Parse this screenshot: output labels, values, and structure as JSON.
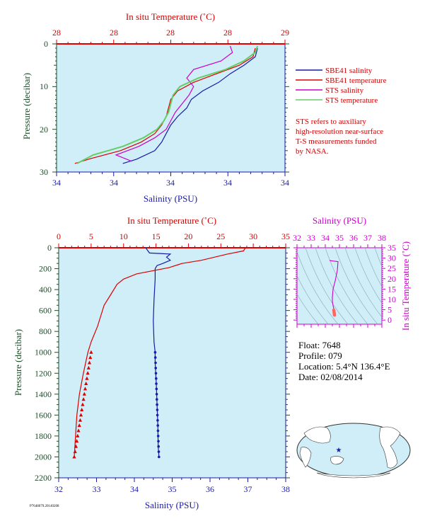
{
  "top_chart": {
    "top_axis_title": "In situ Temperature (˚C)",
    "top_ticks": [
      "28",
      "28",
      "28",
      "28",
      "29"
    ],
    "bottom_axis_title": "Salinity (PSU)",
    "bottom_ticks": [
      "34",
      "34",
      "34",
      "34",
      "34"
    ],
    "left_axis_title": "Pressure (decibar)",
    "left_ticks": [
      "0",
      "10",
      "20",
      "30"
    ],
    "legend": [
      {
        "label": "SBE41 salinity",
        "color": "#1a1aa8"
      },
      {
        "label": "SBE41 temperature",
        "color": "#dd0000"
      },
      {
        "label": "STS salinity",
        "color": "#cc00cc"
      },
      {
        "label": "STS temperature",
        "color": "#66cc66"
      }
    ],
    "note_lines": [
      "STS refers to auxiliary",
      "high-resolution near-surface",
      "T-S measurements funded",
      "by NASA."
    ]
  },
  "main_chart": {
    "top_axis_title": "In situ Temperature (˚C)",
    "top_ticks": [
      "0",
      "5",
      "10",
      "15",
      "20",
      "25",
      "30",
      "35"
    ],
    "bottom_axis_title": "Salinity (PSU)",
    "bottom_ticks": [
      "32",
      "33",
      "34",
      "35",
      "36",
      "37",
      "38"
    ],
    "left_axis_title": "Pressure (decibar)",
    "left_ticks": [
      "0",
      "200",
      "400",
      "600",
      "800",
      "1000",
      "1200",
      "1400",
      "1600",
      "1800",
      "2000",
      "2200"
    ]
  },
  "ts_chart": {
    "top_axis_title": "Salinity (PSU)",
    "top_ticks": [
      "32",
      "33",
      "34",
      "35",
      "36",
      "37",
      "38"
    ],
    "right_axis_title": "In situ Temperature (˚C)",
    "right_ticks": [
      "0",
      "5",
      "10",
      "15",
      "20",
      "25",
      "30",
      "35"
    ]
  },
  "float_info": {
    "float_line": "Float:  7648",
    "profile_line": "Profile:  079",
    "location_line": "Location:  5.4°N  136.4°E",
    "date_line": "Date:  02/08/2014"
  },
  "footer_id": "P7648079.20140208",
  "colors": {
    "plot_bg": "#cfeef8",
    "salinity": "#1a1aa8",
    "temperature": "#dd0000",
    "sts_salinity": "#cc00cc",
    "sts_temperature": "#66cc66",
    "ts_curve": "#cc00cc",
    "ts_points": "#ff6666"
  },
  "chart_data": [
    {
      "type": "line",
      "title": "",
      "xlabel": "Salinity (PSU) / In situ Temperature (˚C)",
      "ylabel": "Pressure (decibar)",
      "ylim": [
        30,
        0
      ],
      "series": [
        {
          "name": "SBE41 salinity",
          "pressure": [
            1,
            3,
            5,
            7,
            9,
            11,
            13,
            15,
            17,
            19,
            21,
            23,
            25,
            27,
            28
          ],
          "value_frac": [
            0.88,
            0.87,
            0.82,
            0.76,
            0.71,
            0.64,
            0.59,
            0.57,
            0.53,
            0.5,
            0.48,
            0.46,
            0.43,
            0.35,
            0.29
          ]
        },
        {
          "name": "SBE41 temperature",
          "pressure": [
            1,
            3,
            5,
            7,
            9,
            11,
            13,
            15,
            17,
            19,
            21,
            23,
            25,
            27,
            28
          ],
          "value_frac": [
            0.87,
            0.86,
            0.8,
            0.7,
            0.6,
            0.53,
            0.5,
            0.49,
            0.48,
            0.46,
            0.43,
            0.37,
            0.28,
            0.14,
            0.08
          ]
        },
        {
          "name": "STS salinity",
          "pressure": [
            0.5,
            2,
            4,
            6,
            8,
            10,
            12,
            14,
            16,
            18,
            20,
            22,
            24,
            26,
            27.5
          ],
          "value_frac": [
            0.76,
            0.77,
            0.72,
            0.6,
            0.57,
            0.6,
            0.58,
            0.55,
            0.52,
            0.5,
            0.48,
            0.43,
            0.36,
            0.26,
            0.33
          ]
        },
        {
          "name": "STS temperature",
          "pressure": [
            0.5,
            2,
            4,
            6,
            8,
            10,
            12,
            14,
            16,
            18,
            20,
            22,
            24,
            26,
            28
          ],
          "value_frac": [
            0.88,
            0.87,
            0.82,
            0.74,
            0.62,
            0.54,
            0.51,
            0.5,
            0.49,
            0.47,
            0.44,
            0.38,
            0.29,
            0.16,
            0.09
          ]
        }
      ]
    },
    {
      "type": "line",
      "title": "",
      "xlabel": "Salinity (PSU)",
      "ylabel": "Pressure (decibar)",
      "xlim": [
        32,
        38
      ],
      "ylim": [
        2200,
        0
      ],
      "temperature_xlim": [
        0,
        35
      ],
      "series": [
        {
          "name": "Salinity",
          "x": [
            34.3,
            34.4,
            34.95,
            34.85,
            34.95,
            34.75,
            34.6,
            34.55,
            34.55,
            34.52,
            34.5,
            34.52,
            34.55,
            34.55,
            34.58,
            34.6,
            34.62,
            34.63,
            34.65
          ],
          "pressure": [
            0,
            50,
            60,
            90,
            120,
            150,
            170,
            200,
            300,
            500,
            700,
            900,
            1000,
            1100,
            1300,
            1500,
            1700,
            1900,
            2000
          ]
        },
        {
          "name": "In situ Temperature",
          "x": [
            28.8,
            28.5,
            26,
            22,
            19,
            17,
            12,
            10,
            9,
            8,
            7,
            6.5,
            6,
            5,
            4.5,
            3.8,
            3.2,
            2.8,
            2.6,
            2.4
          ],
          "pressure": [
            0,
            30,
            60,
            120,
            150,
            190,
            250,
            300,
            350,
            450,
            550,
            650,
            750,
            900,
            1000,
            1200,
            1400,
            1600,
            1800,
            2000
          ]
        }
      ]
    },
    {
      "type": "line",
      "title": "",
      "xlabel": "Salinity (PSU)",
      "ylabel": "In situ Temperature (˚C)",
      "xlim": [
        32,
        38
      ],
      "ylim": [
        -2,
        35
      ],
      "series": [
        {
          "name": "T-S",
          "x": [
            34.3,
            34.9,
            34.85,
            34.7,
            34.55,
            34.5,
            34.5,
            34.55,
            34.6,
            34.62,
            34.63,
            34.65
          ],
          "y": [
            28.8,
            28.3,
            24,
            19,
            15,
            11,
            9,
            7,
            5.5,
            4.5,
            3.5,
            2.4
          ]
        }
      ]
    }
  ]
}
